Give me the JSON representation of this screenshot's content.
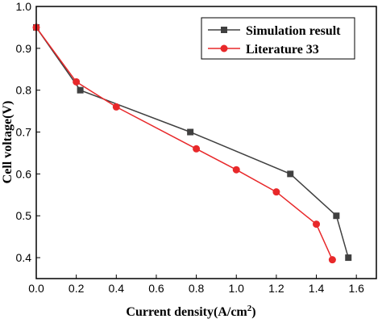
{
  "chart_data": {
    "type": "line",
    "title": "",
    "xlabel": "Current density(A/cm",
    "xlabel_sup": "2",
    "xlabel_end": ")",
    "ylabel": "Cell voltage(V)",
    "xlim": [
      0.0,
      1.7
    ],
    "ylim": [
      0.35,
      1.0
    ],
    "x_ticks": [
      "0.0",
      "0.2",
      "0.4",
      "0.6",
      "0.8",
      "1.0",
      "1.2",
      "1.4",
      "1.6"
    ],
    "y_ticks": [
      "0.4",
      "0.5",
      "0.6",
      "0.7",
      "0.8",
      "0.9",
      "1.0"
    ],
    "legend_position": "top-right",
    "grid": false,
    "series": [
      {
        "name": "Simulation result",
        "color": "#404040",
        "marker": "square",
        "x": [
          0.0,
          0.22,
          0.77,
          1.27,
          1.5,
          1.56
        ],
        "y": [
          0.95,
          0.8,
          0.7,
          0.6,
          0.5,
          0.4
        ]
      },
      {
        "name": "Literature 33",
        "color": "#e8282a",
        "marker": "circle",
        "x": [
          0.0,
          0.2,
          0.4,
          0.8,
          1.0,
          1.2,
          1.4,
          1.48
        ],
        "y": [
          0.95,
          0.82,
          0.76,
          0.66,
          0.61,
          0.557,
          0.48,
          0.395
        ]
      }
    ]
  }
}
